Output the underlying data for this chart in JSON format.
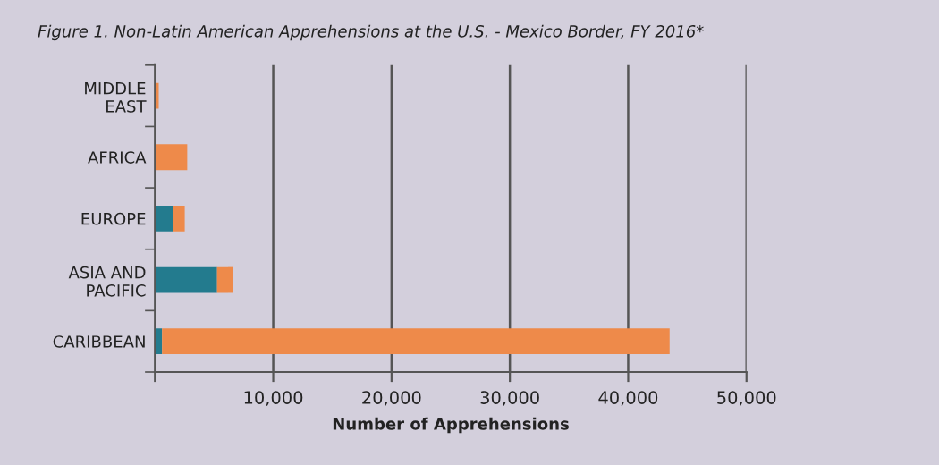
{
  "chart_data": {
    "type": "bar",
    "orientation": "horizontal",
    "stacked": true,
    "title": "Figure 1. Non-Latin American Apprehensions at the U.S. - Mexico Border, FY 2016*",
    "xlabel": "Number of Apprehensions",
    "categories": [
      "MIDDLE\nEAST",
      "AFRICA",
      "EUROPE",
      "ASIA AND\nPACIFIC",
      "CARIBBEAN"
    ],
    "series": [
      {
        "color": "#237b8e",
        "values": [
          0,
          0,
          1560,
          5250,
          600
        ]
      },
      {
        "color": "#ee8a4a",
        "values": [
          320,
          2730,
          960,
          1350,
          42900
        ]
      }
    ],
    "xlim": [
      0,
      50000
    ],
    "xticks": [
      {
        "value": 0,
        "label": null
      },
      {
        "value": 10000,
        "label": "10,000"
      },
      {
        "value": 20000,
        "label": "20,000"
      },
      {
        "value": 30000,
        "label": "30,000"
      },
      {
        "value": 40000,
        "label": "40,000"
      },
      {
        "value": 50000,
        "label": "50,000"
      }
    ],
    "grid": "x"
  }
}
